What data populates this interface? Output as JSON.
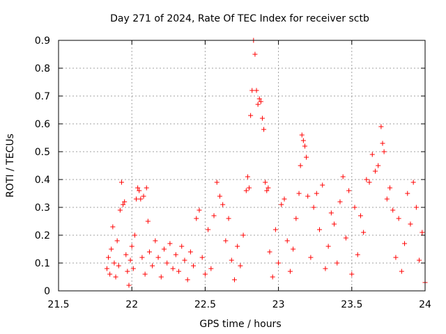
{
  "chart_data": {
    "type": "scatter",
    "title": "Day 271 of 2024, Rate Of TEC Index for receiver sctb",
    "xlabel": "GPS time / hours",
    "ylabel": "ROTI / TECUs",
    "xlim": [
      21.5,
      24
    ],
    "ylim": [
      0,
      0.9
    ],
    "xticks": [
      "21.5",
      "22",
      "22.5",
      "23",
      "23.5",
      "24"
    ],
    "yticks": [
      "0",
      "0.1",
      "0.2",
      "0.3",
      "0.4",
      "0.5",
      "0.6",
      "0.7",
      "0.8",
      "0.9"
    ],
    "grid": true,
    "marker": "+",
    "series": [
      {
        "name": "ROTI",
        "color": "#ff0000",
        "points": [
          [
            21.83,
            0.08
          ],
          [
            21.84,
            0.12
          ],
          [
            21.85,
            0.06
          ],
          [
            21.86,
            0.15
          ],
          [
            21.87,
            0.23
          ],
          [
            21.88,
            0.1
          ],
          [
            21.89,
            0.05
          ],
          [
            21.9,
            0.18
          ],
          [
            21.91,
            0.09
          ],
          [
            21.92,
            0.29
          ],
          [
            21.93,
            0.39
          ],
          [
            21.94,
            0.31
          ],
          [
            21.95,
            0.32
          ],
          [
            21.96,
            0.13
          ],
          [
            21.97,
            0.07
          ],
          [
            21.98,
            0.02
          ],
          [
            21.99,
            0.11
          ],
          [
            22.0,
            0.16
          ],
          [
            22.01,
            0.08
          ],
          [
            22.02,
            0.2
          ],
          [
            22.03,
            0.33
          ],
          [
            22.04,
            0.37
          ],
          [
            22.05,
            0.36
          ],
          [
            22.06,
            0.33
          ],
          [
            22.07,
            0.12
          ],
          [
            22.08,
            0.34
          ],
          [
            22.09,
            0.06
          ],
          [
            22.1,
            0.37
          ],
          [
            22.11,
            0.25
          ],
          [
            22.12,
            0.14
          ],
          [
            22.14,
            0.09
          ],
          [
            22.16,
            0.18
          ],
          [
            22.18,
            0.12
          ],
          [
            22.2,
            0.05
          ],
          [
            22.22,
            0.15
          ],
          [
            22.24,
            0.1
          ],
          [
            22.26,
            0.17
          ],
          [
            22.28,
            0.08
          ],
          [
            22.3,
            0.13
          ],
          [
            22.32,
            0.07
          ],
          [
            22.34,
            0.16
          ],
          [
            22.36,
            0.11
          ],
          [
            22.38,
            0.04
          ],
          [
            22.4,
            0.14
          ],
          [
            22.42,
            0.09
          ],
          [
            22.44,
            0.26
          ],
          [
            22.46,
            0.29
          ],
          [
            22.48,
            0.12
          ],
          [
            22.5,
            0.06
          ],
          [
            22.52,
            0.22
          ],
          [
            22.54,
            0.08
          ],
          [
            22.56,
            0.27
          ],
          [
            22.58,
            0.39
          ],
          [
            22.6,
            0.34
          ],
          [
            22.62,
            0.31
          ],
          [
            22.64,
            0.18
          ],
          [
            22.66,
            0.26
          ],
          [
            22.68,
            0.11
          ],
          [
            22.7,
            0.04
          ],
          [
            22.72,
            0.16
          ],
          [
            22.74,
            0.09
          ],
          [
            22.76,
            0.2
          ],
          [
            22.78,
            0.36
          ],
          [
            22.79,
            0.41
          ],
          [
            22.8,
            0.37
          ],
          [
            22.81,
            0.63
          ],
          [
            22.82,
            0.72
          ],
          [
            22.83,
            0.9
          ],
          [
            22.84,
            0.85
          ],
          [
            22.85,
            0.72
          ],
          [
            22.86,
            0.67
          ],
          [
            22.87,
            0.69
          ],
          [
            22.88,
            0.68
          ],
          [
            22.89,
            0.62
          ],
          [
            22.9,
            0.58
          ],
          [
            22.91,
            0.39
          ],
          [
            22.92,
            0.36
          ],
          [
            22.93,
            0.37
          ],
          [
            22.94,
            0.14
          ],
          [
            22.96,
            0.05
          ],
          [
            22.98,
            0.22
          ],
          [
            23.0,
            0.1
          ],
          [
            23.02,
            0.31
          ],
          [
            23.04,
            0.33
          ],
          [
            23.06,
            0.18
          ],
          [
            23.08,
            0.07
          ],
          [
            23.1,
            0.15
          ],
          [
            23.12,
            0.26
          ],
          [
            23.14,
            0.35
          ],
          [
            23.15,
            0.45
          ],
          [
            23.16,
            0.56
          ],
          [
            23.17,
            0.54
          ],
          [
            23.18,
            0.52
          ],
          [
            23.19,
            0.48
          ],
          [
            23.2,
            0.34
          ],
          [
            23.22,
            0.12
          ],
          [
            23.24,
            0.3
          ],
          [
            23.26,
            0.35
          ],
          [
            23.28,
            0.22
          ],
          [
            23.3,
            0.38
          ],
          [
            23.32,
            0.08
          ],
          [
            23.34,
            0.16
          ],
          [
            23.36,
            0.28
          ],
          [
            23.38,
            0.24
          ],
          [
            23.4,
            0.1
          ],
          [
            23.42,
            0.32
          ],
          [
            23.44,
            0.41
          ],
          [
            23.46,
            0.19
          ],
          [
            23.48,
            0.36
          ],
          [
            23.5,
            0.06
          ],
          [
            23.52,
            0.3
          ],
          [
            23.54,
            0.13
          ],
          [
            23.56,
            0.27
          ],
          [
            23.58,
            0.21
          ],
          [
            23.6,
            0.4
          ],
          [
            23.62,
            0.39
          ],
          [
            23.64,
            0.49
          ],
          [
            23.66,
            0.43
          ],
          [
            23.68,
            0.45
          ],
          [
            23.7,
            0.59
          ],
          [
            23.71,
            0.53
          ],
          [
            23.72,
            0.5
          ],
          [
            23.74,
            0.33
          ],
          [
            23.76,
            0.37
          ],
          [
            23.78,
            0.29
          ],
          [
            23.8,
            0.12
          ],
          [
            23.82,
            0.26
          ],
          [
            23.84,
            0.07
          ],
          [
            23.86,
            0.17
          ],
          [
            23.88,
            0.35
          ],
          [
            23.9,
            0.24
          ],
          [
            23.92,
            0.39
          ],
          [
            23.94,
            0.3
          ],
          [
            23.96,
            0.11
          ],
          [
            23.98,
            0.21
          ],
          [
            24.0,
            0.03
          ]
        ]
      }
    ]
  }
}
